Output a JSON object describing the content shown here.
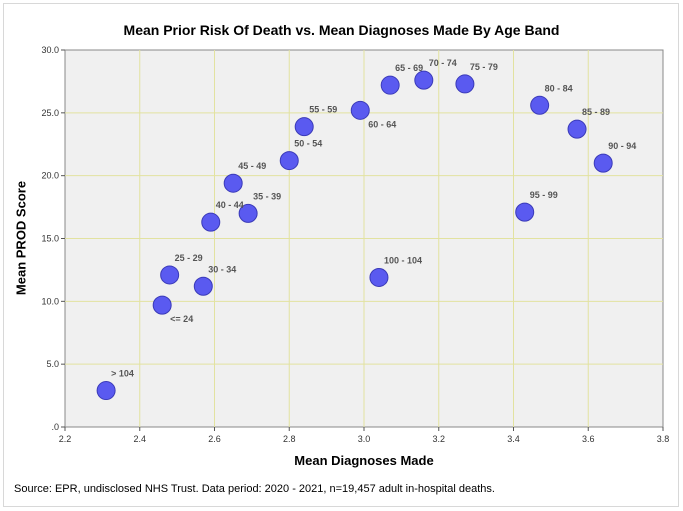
{
  "chart_data": {
    "type": "scatter",
    "title": "Mean Prior Risk Of Death vs. Mean Diagnoses Made By Age Band",
    "xlabel": "Mean Diagnoses Made",
    "ylabel": "Mean PROD Score",
    "xlim": [
      2.2,
      3.8
    ],
    "ylim": [
      0,
      30
    ],
    "x_ticks": [
      "2.2",
      "2.4",
      "2.6",
      "2.8",
      "3.0",
      "3.2",
      "3.4",
      "3.6",
      "3.8"
    ],
    "y_ticks": [
      ".0",
      "5.0",
      "10.0",
      "15.0",
      "20.0",
      "25.0",
      "30.0"
    ],
    "grid": true,
    "marker_color": "#5a5af0",
    "points": [
      {
        "label": "<= 24",
        "x": 2.46,
        "y": 9.7,
        "label_pos": "below-right"
      },
      {
        "label": "25 - 29",
        "x": 2.48,
        "y": 12.1,
        "label_pos": "above-right"
      },
      {
        "label": "30 - 34",
        "x": 2.57,
        "y": 11.2,
        "label_pos": "above-right"
      },
      {
        "label": "35 - 39",
        "x": 2.69,
        "y": 17.0,
        "label_pos": "above-right"
      },
      {
        "label": "40 - 44",
        "x": 2.59,
        "y": 16.3,
        "label_pos": "above-right"
      },
      {
        "label": "45 - 49",
        "x": 2.65,
        "y": 19.4,
        "label_pos": "above-right"
      },
      {
        "label": "50 - 54",
        "x": 2.8,
        "y": 21.2,
        "label_pos": "above-right"
      },
      {
        "label": "55 - 59",
        "x": 2.84,
        "y": 23.9,
        "label_pos": "above-right"
      },
      {
        "label": "60 - 64",
        "x": 2.99,
        "y": 25.2,
        "label_pos": "below-right"
      },
      {
        "label": "65 - 69",
        "x": 3.07,
        "y": 27.2,
        "label_pos": "above-right"
      },
      {
        "label": "70 - 74",
        "x": 3.16,
        "y": 27.6,
        "label_pos": "above-right"
      },
      {
        "label": "75 - 79",
        "x": 3.27,
        "y": 27.3,
        "label_pos": "above-right"
      },
      {
        "label": "80 - 84",
        "x": 3.47,
        "y": 25.6,
        "label_pos": "above-right"
      },
      {
        "label": "85 - 89",
        "x": 3.57,
        "y": 23.7,
        "label_pos": "above-right"
      },
      {
        "label": "90 - 94",
        "x": 3.64,
        "y": 21.0,
        "label_pos": "above-right"
      },
      {
        "label": "95 - 99",
        "x": 3.43,
        "y": 17.1,
        "label_pos": "above-right"
      },
      {
        "label": "100 - 104",
        "x": 3.04,
        "y": 11.9,
        "label_pos": "above-right"
      },
      {
        "label": "> 104",
        "x": 2.31,
        "y": 2.9,
        "label_pos": "above-right"
      }
    ]
  },
  "source_note": "Source: EPR, undisclosed NHS Trust. Data period: 2020 - 2021, n=19,457 adult in-hospital deaths."
}
